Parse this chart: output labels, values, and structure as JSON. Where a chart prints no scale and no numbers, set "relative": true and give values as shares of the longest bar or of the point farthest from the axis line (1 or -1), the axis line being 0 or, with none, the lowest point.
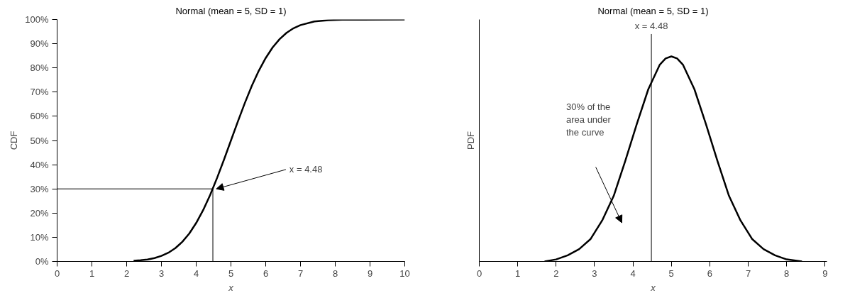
{
  "chart_data": [
    {
      "type": "line",
      "title": "Normal (mean = 5, SD = 1)",
      "xlabel": "x",
      "ylabel": "CDF",
      "color": "#000000",
      "x": [
        2.2,
        2.4,
        2.6,
        2.8,
        3.0,
        3.2,
        3.4,
        3.6,
        3.8,
        4.0,
        4.2,
        4.4,
        4.6,
        4.8,
        5.0,
        5.2,
        5.4,
        5.6,
        5.8,
        6.0,
        6.2,
        6.4,
        6.6,
        6.8,
        7.0,
        7.4,
        7.8,
        8.2,
        10
      ],
      "values": [
        0.3,
        0.5,
        0.8,
        1.4,
        2.3,
        3.6,
        5.5,
        8.1,
        11.5,
        15.9,
        21.2,
        27.4,
        34.5,
        42.1,
        50,
        57.9,
        65.5,
        72.6,
        78.8,
        84.1,
        88.5,
        91.9,
        94.5,
        96.4,
        97.7,
        99.2,
        99.7,
        99.9,
        100
      ],
      "xlim": [
        0,
        10
      ],
      "ylim": [
        0,
        100
      ],
      "xticks": [
        0,
        1,
        2,
        3,
        4,
        5,
        6,
        7,
        8,
        9,
        10
      ],
      "yticks": [
        {
          "value": 0,
          "label": "0%"
        },
        {
          "value": 10,
          "label": "10%"
        },
        {
          "value": 20,
          "label": "20%"
        },
        {
          "value": 30,
          "label": "30%"
        },
        {
          "value": 40,
          "label": "40%"
        },
        {
          "value": 50,
          "label": "50%"
        },
        {
          "value": 60,
          "label": "60%"
        },
        {
          "value": 70,
          "label": "70%"
        },
        {
          "value": 80,
          "label": "80%"
        },
        {
          "value": 90,
          "label": "90%"
        },
        {
          "value": 100,
          "label": "100%"
        }
      ],
      "ref_lines": [
        {
          "axis": "x",
          "value": 4.48
        },
        {
          "axis": "y",
          "value": 30
        }
      ],
      "annotations": [
        {
          "text": "x = 4.48",
          "x": 4.48,
          "y": 30
        }
      ]
    },
    {
      "type": "line",
      "title": "Normal (mean = 5, SD = 1)",
      "xlabel": "x",
      "ylabel": "PDF",
      "color": "#000000",
      "relative": true,
      "tick_labels": "x",
      "x": [
        1.7,
        2.0,
        2.3,
        2.6,
        2.9,
        3.2,
        3.5,
        3.8,
        4.1,
        4.4,
        4.7,
        4.85,
        5.0,
        5.15,
        5.3,
        5.6,
        5.9,
        6.2,
        6.5,
        6.8,
        7.1,
        7.4,
        7.7,
        8.0,
        8.4
      ],
      "values": [
        0.0,
        0.01,
        0.03,
        0.06,
        0.11,
        0.2,
        0.32,
        0.49,
        0.67,
        0.84,
        0.96,
        0.99,
        1,
        0.99,
        0.96,
        0.84,
        0.67,
        0.49,
        0.32,
        0.2,
        0.11,
        0.06,
        0.03,
        0.01,
        0.0
      ],
      "xlim": [
        0,
        9.05
      ],
      "xticks": [
        0,
        1,
        2,
        3,
        4,
        5,
        6,
        7,
        8,
        9
      ],
      "ref_lines": [
        {
          "axis": "x",
          "value": 4.48,
          "label": "x = 4.48"
        }
      ],
      "annotations": [
        "30% of the\narea under\nthe curve"
      ]
    }
  ]
}
